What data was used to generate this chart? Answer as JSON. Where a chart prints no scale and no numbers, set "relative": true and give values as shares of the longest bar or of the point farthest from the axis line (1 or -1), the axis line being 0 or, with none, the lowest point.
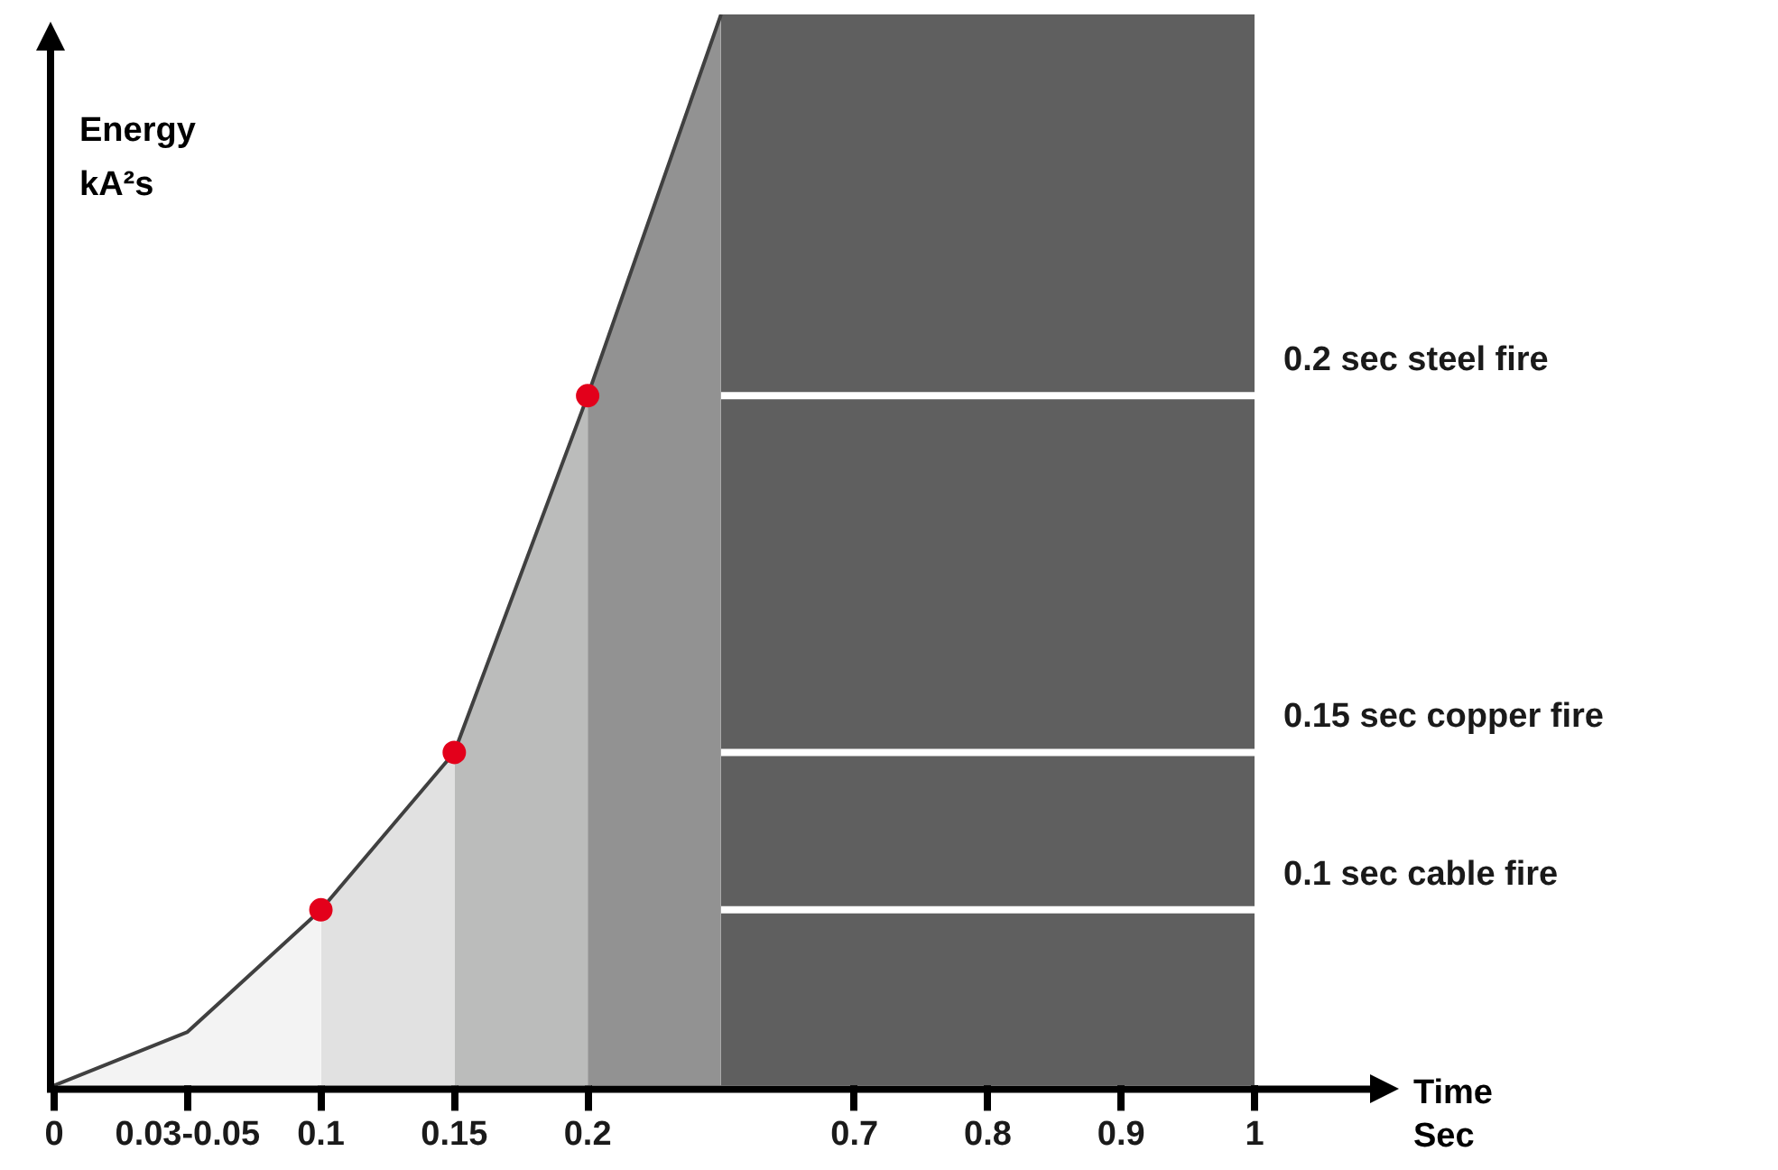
{
  "chart_data": {
    "type": "area",
    "relative": true,
    "xlabel": "Time\nSec",
    "ylabel": "Energy\nkA²s",
    "categories": [
      "0",
      "0.03-0.05",
      "0.1",
      "0.15",
      "0.2",
      null,
      "0.7",
      "0.8",
      "0.9",
      "1"
    ],
    "tick_labels": "x",
    "grid": false,
    "legend": false,
    "series": [
      {
        "type": "scatter",
        "marker": "circle",
        "color": "#e3001b",
        "x": [
          "0.1",
          "0.15",
          "0.2"
        ],
        "values": [
          0.164,
          0.311,
          0.644
        ]
      },
      {
        "type": "line",
        "marker": "none",
        "color": "#404040",
        "values": [
          0,
          0.05,
          0.164,
          0.311,
          0.644,
          1,
          null,
          null,
          null,
          null
        ]
      },
      {
        "type": "area",
        "color": "#f3f3f3",
        "values": [
          0,
          0.05,
          0.164,
          null,
          null,
          null,
          null,
          null,
          null,
          null
        ]
      },
      {
        "type": "area",
        "color": "#e1e1e1",
        "values": [
          null,
          null,
          0.164,
          0.311,
          null,
          null,
          null,
          null,
          null,
          null
        ]
      },
      {
        "type": "area",
        "color": "#bbbcbb",
        "values": [
          null,
          null,
          null,
          0.311,
          0.644,
          null,
          null,
          null,
          null,
          null
        ]
      },
      {
        "type": "area",
        "color": "#929292",
        "values": [
          null,
          null,
          null,
          null,
          0.644,
          1,
          null,
          null,
          null,
          null
        ]
      },
      {
        "type": "area",
        "color": "#5f5f5f",
        "values": [
          null,
          null,
          null,
          null,
          null,
          1,
          1,
          1,
          1,
          1
        ]
      }
    ],
    "ref_lines": [
      {
        "axis": "x",
        "value": "0.1",
        "color": "#ffffff"
      },
      {
        "axis": "x",
        "value": "0.15",
        "color": "#ffffff"
      },
      {
        "axis": "x",
        "value": "0.2",
        "color": "#ffffff"
      },
      {
        "axis": "y",
        "value": 0.164,
        "label": "0.1 sec cable fire",
        "color": "#ffffff"
      },
      {
        "axis": "y",
        "value": 0.311,
        "label": "0.15 sec copper fire",
        "color": "#ffffff"
      },
      {
        "axis": "y",
        "value": 0.644,
        "label": "0.2 sec steel fire",
        "color": "#ffffff"
      }
    ]
  }
}
